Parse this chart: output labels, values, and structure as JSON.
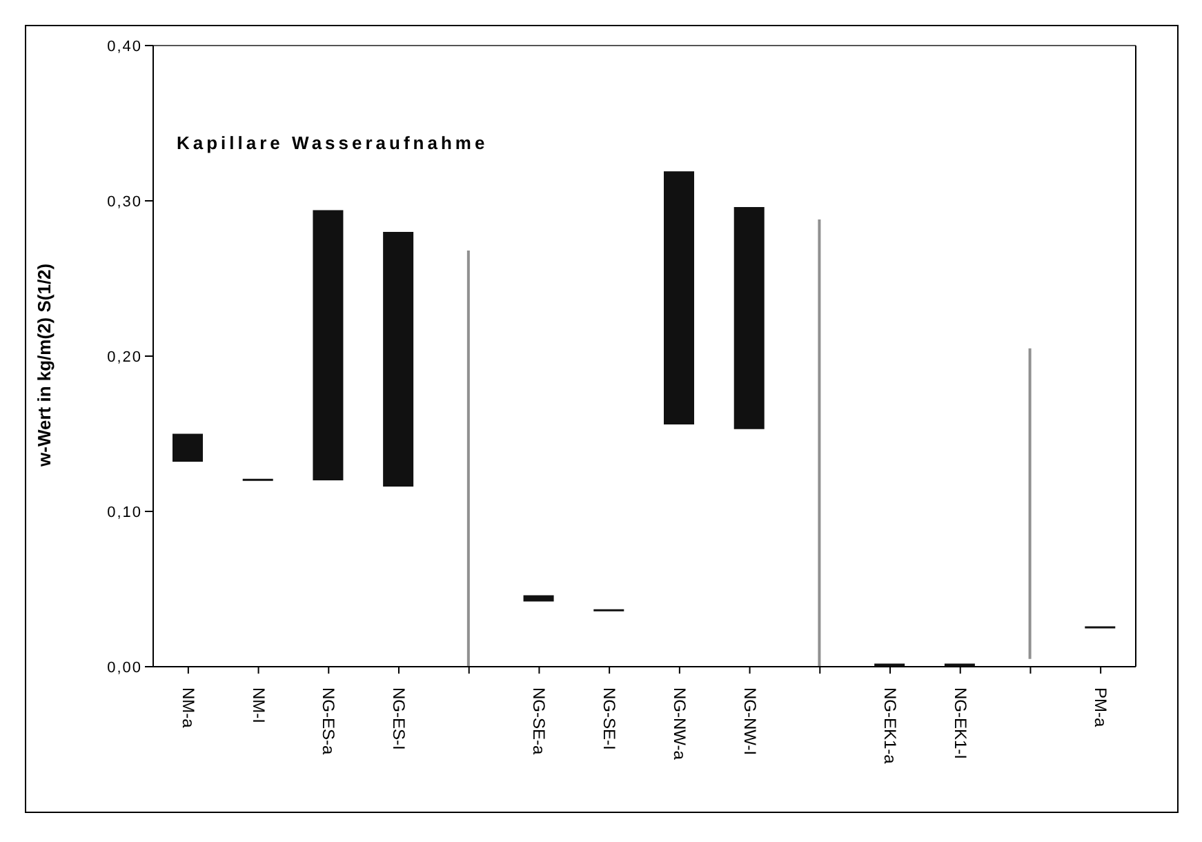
{
  "chart_data": {
    "type": "bar",
    "title": "Kapillare Wasseraufnahme",
    "ylabel": "w-Wert in kg/m(2) S(1/2)",
    "categories": [
      "NM-a",
      "NM-I",
      "NG-ES-a",
      "NG-ES-I",
      null,
      "NG-SE-a",
      "NG-SE-I",
      "NG-NW-a",
      "NG-NW-I",
      null,
      "NG-EK1-a",
      "NG-EK1-I",
      null,
      "PM-a"
    ],
    "series": [
      {
        "color": "#111111",
        "base": [
          0.132,
          0.12,
          0.12,
          0.116,
          null,
          0.042,
          0.036,
          0.156,
          0.153,
          null,
          0,
          0,
          null,
          0.025
        ],
        "values": [
          0.018,
          0.001,
          0.174,
          0.164,
          null,
          0.004,
          0.001,
          0.163,
          0.143,
          null,
          0.002,
          0.002,
          null,
          0.001
        ]
      },
      {
        "color": "#909090",
        "base": [
          null,
          null,
          null,
          null,
          0,
          null,
          null,
          null,
          null,
          0,
          null,
          null,
          0.005,
          null
        ],
        "values": [
          null,
          null,
          null,
          null,
          0.268,
          null,
          null,
          null,
          null,
          0.288,
          null,
          null,
          0.2,
          null
        ]
      }
    ],
    "ylim": [
      0,
      0.4
    ],
    "yticks": [
      {
        "value": 0,
        "label": "0,00"
      },
      {
        "value": 0.1,
        "label": "0,10"
      },
      {
        "value": 0.2,
        "label": "0,20"
      },
      {
        "value": 0.3,
        "label": "0,30"
      },
      {
        "value": 0.4,
        "label": "0,40"
      }
    ],
    "grid": false
  }
}
